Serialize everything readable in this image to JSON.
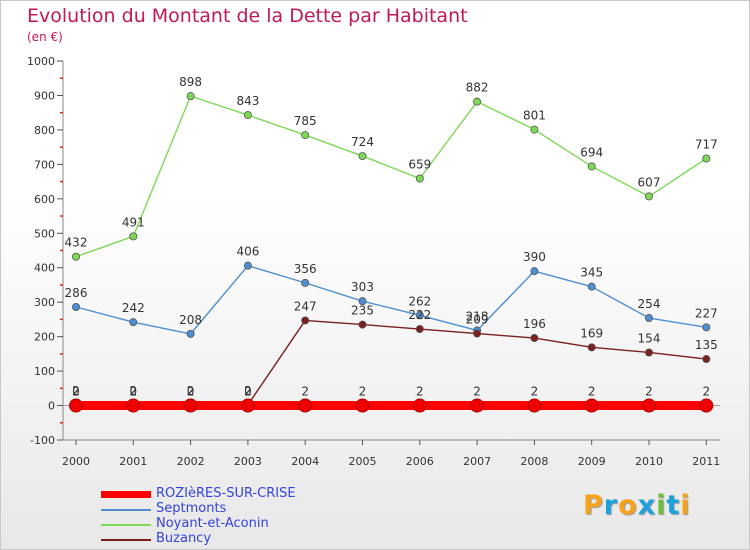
{
  "title": "Evolution du Montant de la Dette par Habitant",
  "subtitle": "(en €)",
  "brand": "Proxiti",
  "brand_colors": [
    "#f7a21b",
    "#1da1d9",
    "#f7a21b",
    "#1da1d9",
    "#6cbf3b",
    "#1da1d9",
    "#f7a21b"
  ],
  "chart_data": {
    "type": "line",
    "title": "Evolution du Montant de la Dette par Habitant",
    "subtitle": "(en €)",
    "xlabel": "",
    "ylabel": "",
    "x": [
      "2000",
      "2001",
      "2002",
      "2003",
      "2004",
      "2005",
      "2006",
      "2007",
      "2008",
      "2009",
      "2010",
      "2011"
    ],
    "ylim": [
      -100,
      1000
    ],
    "yticks": [
      -100,
      0,
      100,
      200,
      300,
      400,
      500,
      600,
      700,
      800,
      900,
      1000
    ],
    "grid": false,
    "legend_position": "bottom-left",
    "series": [
      {
        "name": "ROZIèRES-SUR-CRISE",
        "color": "#ff0000",
        "marker_color": "#ee0000",
        "values": [
          0,
          0,
          0,
          0,
          0,
          0,
          0,
          0,
          0,
          0,
          0,
          0
        ],
        "labels": [
          "0",
          "0",
          "0",
          "0",
          "",
          "",
          "",
          "",
          "",
          "",
          "",
          ""
        ]
      },
      {
        "name": "Septmonts",
        "color": "#4f8fd0",
        "marker_color": "#4f8fd0",
        "values": [
          286,
          242,
          208,
          406,
          356,
          303,
          262,
          218,
          390,
          345,
          254,
          227
        ],
        "labels": [
          "286",
          "242",
          "208",
          "406",
          "356",
          "303",
          "262",
          "218",
          "390",
          "345",
          "254",
          "227"
        ]
      },
      {
        "name": "Noyant-et-Aconin",
        "color": "#7ed957",
        "marker_color": "#7ed957",
        "values": [
          432,
          491,
          898,
          843,
          785,
          724,
          659,
          882,
          801,
          694,
          607,
          717
        ],
        "labels": [
          "432",
          "491",
          "898",
          "843",
          "785",
          "724",
          "659",
          "882",
          "801",
          "694",
          "607",
          "717"
        ]
      },
      {
        "name": "Buzancy",
        "color": "#7b1f1f",
        "marker_color": "#7b1f1f",
        "values": [
          2,
          2,
          2,
          2,
          247,
          235,
          222,
          209,
          196,
          169,
          154,
          135
        ],
        "labels": [
          "2",
          "2",
          "2",
          "2",
          "247",
          "235",
          "222",
          "209",
          "196",
          "169",
          "154",
          "135"
        ]
      }
    ],
    "annotations": [
      "2",
      "2",
      "2",
      "2",
      "2",
      "2",
      "2",
      "2",
      "2",
      "2",
      "2",
      "2"
    ]
  }
}
